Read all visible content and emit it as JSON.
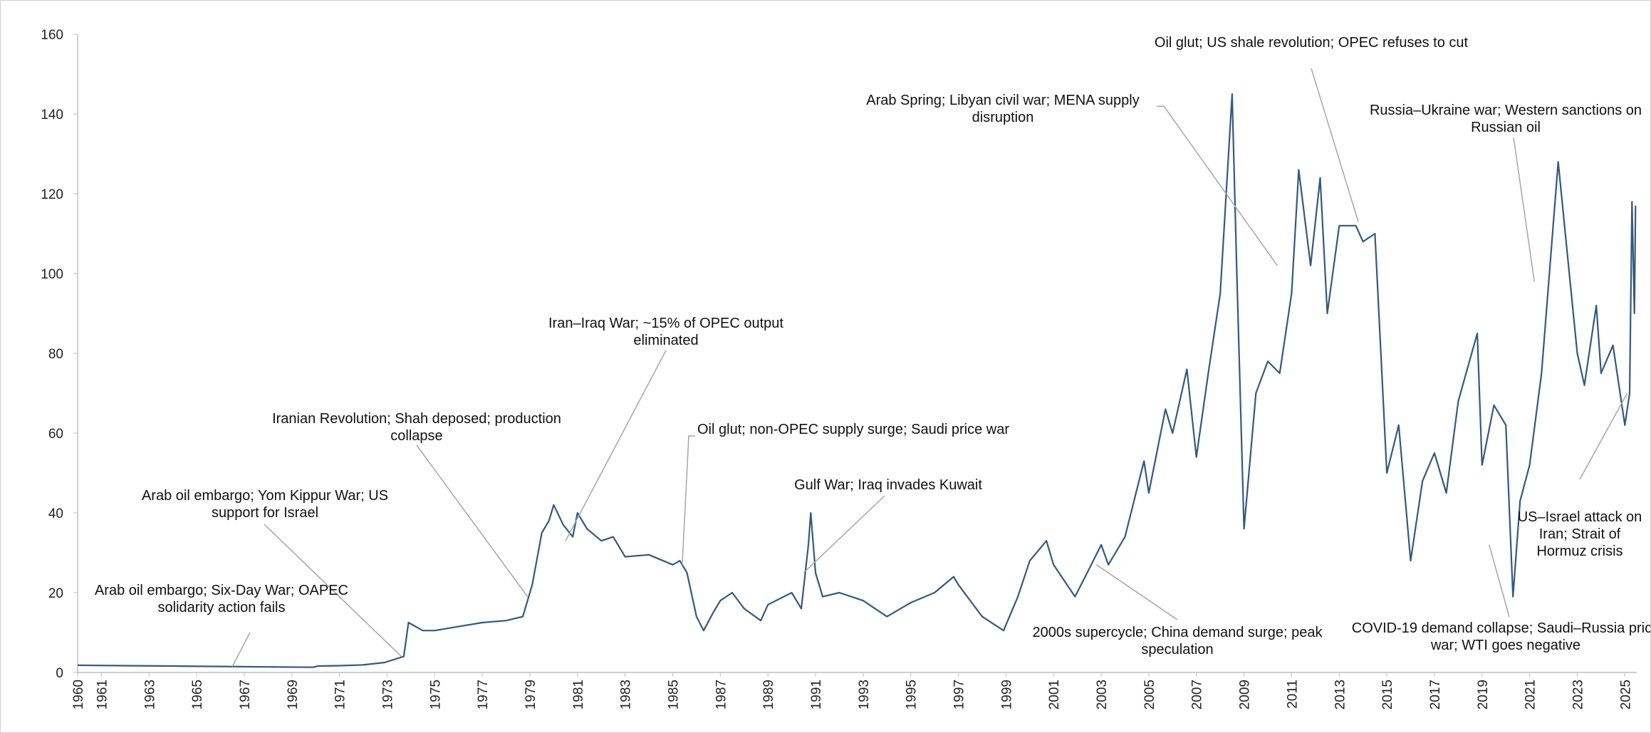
{
  "chart_data": {
    "type": "line",
    "color": "#34597f",
    "x": [
      1960,
      1962,
      1964,
      1966,
      1968,
      1969.9,
      1970.1,
      1971,
      1972,
      1972.9,
      1973.7,
      1973.9,
      1974.5,
      1975,
      1976,
      1977,
      1978,
      1978.7,
      1979.1,
      1979.5,
      1979.8,
      1980,
      1980.4,
      1980.8,
      1981,
      1981.4,
      1982,
      1982.5,
      1983,
      1984,
      1985,
      1985.3,
      1985.6,
      1986,
      1986.3,
      1986.7,
      1987,
      1987.5,
      1988,
      1988.7,
      1989,
      1990,
      1990.4,
      1990.7,
      1990.8,
      1991,
      1991.3,
      1992,
      1993,
      1994,
      1995,
      1996,
      1996.8,
      1997,
      1998,
      1998.9,
      1999.5,
      2000,
      2000.7,
      2001,
      2001.9,
      2002.5,
      2003,
      2003.3,
      2004,
      2004.8,
      2005,
      2005.7,
      2006,
      2006.6,
      2007,
      2007.5,
      2008,
      2008.5,
      2008.7,
      2009,
      2009.5,
      2010,
      2010.5,
      2011,
      2011.3,
      2011.8,
      2012.2,
      2012.5,
      2013,
      2013.7,
      2014,
      2014.5,
      2015,
      2015.5,
      2016,
      2016.5,
      2017,
      2017.5,
      2018,
      2018.8,
      2019,
      2019.5,
      2020,
      2020.3,
      2020.6,
      2021,
      2021.5,
      2022.2,
      2022.5,
      2023,
      2023.3,
      2023.8,
      2024,
      2024.5,
      2025,
      2025.2,
      2025.3,
      2025.4,
      2025.45
    ],
    "values": [
      1.8,
      1.7,
      1.6,
      1.5,
      1.4,
      1.3,
      1.6,
      1.7,
      1.9,
      2.5,
      4,
      12.5,
      10.5,
      10.5,
      11.5,
      12.5,
      13,
      14,
      22,
      35,
      38,
      42,
      37,
      34,
      40,
      36,
      33,
      34,
      29,
      29.5,
      27,
      28,
      25,
      14,
      10.5,
      15,
      18,
      20,
      16,
      13,
      17,
      20,
      16,
      32,
      40,
      25,
      19,
      20,
      18,
      14,
      17.5,
      20,
      24,
      22,
      14,
      10.5,
      19,
      28,
      33,
      27,
      19,
      26,
      32,
      27,
      34,
      53,
      45,
      66,
      60,
      76,
      54,
      75,
      95,
      145,
      100,
      36,
      70,
      78,
      75,
      95,
      126,
      102,
      124,
      90,
      112,
      112,
      108,
      110,
      50,
      62,
      28,
      48,
      55,
      45,
      68,
      85,
      52,
      67,
      62,
      19,
      43,
      52,
      75,
      128,
      110,
      80,
      72,
      92,
      75,
      82,
      62,
      70,
      118,
      90,
      117
    ],
    "xlim": [
      1960,
      2025.5
    ],
    "ylim": [
      0,
      160
    ],
    "yticks": [
      0,
      20,
      40,
      60,
      80,
      100,
      120,
      140,
      160
    ],
    "xticks": [
      1960,
      1961,
      1963,
      1965,
      1967,
      1969,
      1971,
      1973,
      1975,
      1977,
      1979,
      1981,
      1983,
      1985,
      1987,
      1989,
      1991,
      1993,
      1995,
      1997,
      1999,
      2001,
      2003,
      2005,
      2007,
      2009,
      2011,
      2013,
      2015,
      2017,
      2019,
      2021,
      2023,
      2025
    ],
    "annotations": [
      {
        "text": "Arab oil embargo; Six-Day War; OAPEC solidarity action fails",
        "x": 1966.5,
        "y": 1.5
      },
      {
        "text": "Arab oil embargo; Yom Kippur War; US support for Israel",
        "x": 1973.6,
        "y": 4
      },
      {
        "text": "Iranian Revolution; Shah deposed; production collapse",
        "x": 1978.9,
        "y": 19
      },
      {
        "text": "Iran–Iraq War; ~15% of OPEC output eliminated",
        "x": 1980.5,
        "y": 33
      },
      {
        "text": "Oil glut; non-OPEC supply surge; Saudi price war",
        "x": 1985.4,
        "y": 27
      },
      {
        "text": "Gulf War; Iraq invades Kuwait",
        "x": 1990.5,
        "y": 25
      },
      {
        "text": "2000s supercycle; China demand surge; peak speculation",
        "x": 2002.8,
        "y": 27
      },
      {
        "text": "Arab Spring; Libyan civil war; MENA supply disruption",
        "x": 2010.4,
        "y": 102
      },
      {
        "text": "Oil glut; US shale revolution; OPEC refuses to cut",
        "x": 2013.8,
        "y": 113
      },
      {
        "text": "Russia–Ukraine war; Western sanctions on Russian oil",
        "x": 2021.2,
        "y": 98
      },
      {
        "text": "US–Israel attack on Iran; Strait of Hormuz crisis",
        "x": 2025.1,
        "y": 70
      },
      {
        "text": "COVID-19 demand collapse; Saudi–Russia price war; WTI goes negative",
        "x": 2019.3,
        "y": 32
      }
    ]
  }
}
